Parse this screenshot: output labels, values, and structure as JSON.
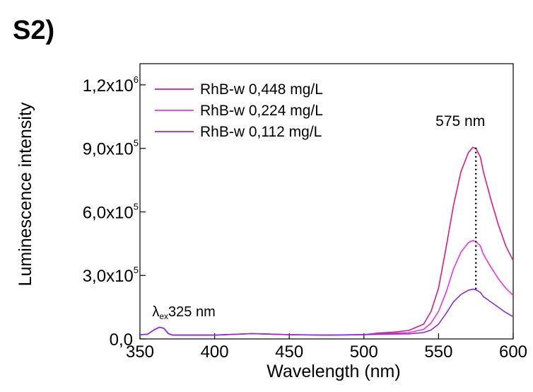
{
  "panel_label": "S2)",
  "colors": {
    "axis": "#000000",
    "background": "#ffffff"
  },
  "chart_data": {
    "type": "line",
    "xlabel": "Wavelength (nm)",
    "ylabel": "Luminescence intensity",
    "xlim": [
      350,
      600
    ],
    "ylim": [
      0,
      1300000
    ],
    "x_ticks": [
      350,
      400,
      450,
      500,
      550,
      600
    ],
    "x_tick_labels": [
      "350",
      "400",
      "450",
      "500",
      "550",
      "600"
    ],
    "y_ticks": [
      {
        "value": 0,
        "label": "0,0",
        "exp": ""
      },
      {
        "value": 300000,
        "label": "3,0x10",
        "exp": "5"
      },
      {
        "value": 600000,
        "label": "6,0x10",
        "exp": "5"
      },
      {
        "value": 900000,
        "label": "9,0x10",
        "exp": "5"
      },
      {
        "value": 1200000,
        "label": "1,2x10",
        "exp": "6"
      }
    ],
    "grid": false,
    "legend_position": "top-left",
    "series": [
      {
        "name": "RhB-w 0,448 mg/L",
        "color": "#e6197a",
        "x": [
          350,
          355,
          360,
          363,
          366,
          369,
          372,
          380,
          400,
          425,
          450,
          475,
          500,
          510,
          520,
          530,
          540,
          545,
          550,
          555,
          560,
          565,
          570,
          573,
          575,
          578,
          580,
          585,
          590,
          595,
          600
        ],
        "y": [
          20000,
          22000,
          45000,
          55000,
          50000,
          25000,
          18000,
          18000,
          18000,
          25000,
          20000,
          18000,
          20000,
          28000,
          32000,
          40000,
          70000,
          130000,
          240000,
          430000,
          630000,
          790000,
          880000,
          905000,
          900000,
          860000,
          790000,
          660000,
          540000,
          440000,
          370000
        ]
      },
      {
        "name": "RhB-w 0,224 mg/L",
        "color": "#ee33e6",
        "x": [
          350,
          355,
          360,
          363,
          366,
          369,
          372,
          380,
          400,
          425,
          450,
          475,
          500,
          510,
          520,
          530,
          540,
          545,
          550,
          555,
          560,
          565,
          570,
          573,
          575,
          578,
          580,
          585,
          590,
          595,
          600
        ],
        "y": [
          20000,
          22000,
          45000,
          55000,
          50000,
          25000,
          18000,
          18000,
          18000,
          25000,
          20000,
          18000,
          20000,
          24000,
          27000,
          30000,
          45000,
          75000,
          130000,
          220000,
          330000,
          410000,
          455000,
          465000,
          460000,
          440000,
          400000,
          340000,
          285000,
          240000,
          205000
        ]
      },
      {
        "name": "RhB-w 0,112 mg/L",
        "color": "#8a2be2",
        "x": [
          350,
          355,
          360,
          363,
          366,
          369,
          372,
          380,
          400,
          425,
          450,
          475,
          500,
          510,
          520,
          530,
          540,
          545,
          550,
          555,
          560,
          565,
          570,
          573,
          575,
          578,
          580,
          585,
          590,
          595,
          600
        ],
        "y": [
          20000,
          22000,
          45000,
          55000,
          50000,
          25000,
          18000,
          18000,
          18000,
          25000,
          20000,
          18000,
          20000,
          22000,
          23000,
          24000,
          30000,
          42000,
          70000,
          120000,
          175000,
          210000,
          230000,
          235000,
          232000,
          220000,
          200000,
          175000,
          150000,
          125000,
          105000
        ]
      }
    ],
    "annotations": [
      {
        "text": "575 nm",
        "x": 575,
        "marker_line_y": [
          235000,
          905000
        ],
        "style": "dotted"
      },
      {
        "text_symbol": "λ",
        "text_sub": "ex",
        "text": "325 nm",
        "anchor_x": 362
      }
    ]
  }
}
